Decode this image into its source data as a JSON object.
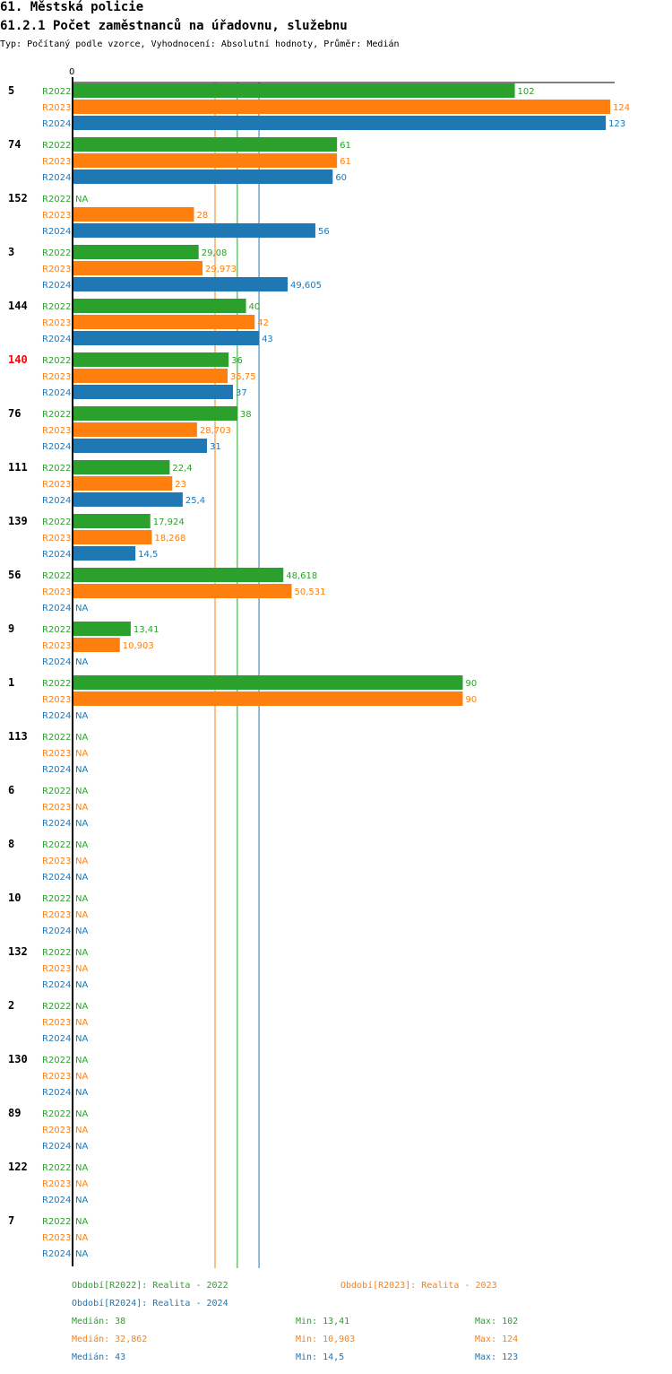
{
  "header": {
    "title": "61. Městská policie",
    "subtitle": "61.2.1 Počet zaměstnanců na úřadovnu, služebnu",
    "type_line": "Typ: Počítaný podle vzorce, Vyhodnocení: Absolutní hodnoty, Průměr: Medián"
  },
  "colors": {
    "R2022": "#2ca02c",
    "R2023": "#ff7f0e",
    "R2024": "#1f77b4",
    "highlight": "#ff0000"
  },
  "chart_data": {
    "type": "bar",
    "orientation": "horizontal",
    "axis_zero_label": "0",
    "xlim": [
      0,
      124
    ],
    "na_label": "NA",
    "series_names": [
      "R2022",
      "R2023",
      "R2024"
    ],
    "groups": [
      {
        "label": "5",
        "highlight": false,
        "values": [
          102,
          124,
          123
        ],
        "labels": [
          "102",
          "124",
          "123"
        ]
      },
      {
        "label": "74",
        "highlight": false,
        "values": [
          61,
          61,
          60
        ],
        "labels": [
          "61",
          "61",
          "60"
        ]
      },
      {
        "label": "152",
        "highlight": false,
        "values": [
          null,
          28,
          56
        ],
        "labels": [
          "NA",
          "28",
          "56"
        ]
      },
      {
        "label": "3",
        "highlight": false,
        "values": [
          29.08,
          29.973,
          49.605
        ],
        "labels": [
          "29,08",
          "29,973",
          "49,605"
        ]
      },
      {
        "label": "144",
        "highlight": false,
        "values": [
          40,
          42,
          43
        ],
        "labels": [
          "40",
          "42",
          "43"
        ]
      },
      {
        "label": "140",
        "highlight": true,
        "values": [
          36,
          35.75,
          37
        ],
        "labels": [
          "36",
          "35,75",
          "37"
        ]
      },
      {
        "label": "76",
        "highlight": false,
        "values": [
          38,
          28.703,
          31
        ],
        "labels": [
          "38",
          "28,703",
          "31"
        ]
      },
      {
        "label": "111",
        "highlight": false,
        "values": [
          22.4,
          23,
          25.4
        ],
        "labels": [
          "22,4",
          "23",
          "25,4"
        ]
      },
      {
        "label": "139",
        "highlight": false,
        "values": [
          17.924,
          18.268,
          14.5
        ],
        "labels": [
          "17,924",
          "18,268",
          "14,5"
        ]
      },
      {
        "label": "56",
        "highlight": false,
        "values": [
          48.618,
          50.531,
          null
        ],
        "labels": [
          "48,618",
          "50,531",
          "NA"
        ]
      },
      {
        "label": "9",
        "highlight": false,
        "values": [
          13.41,
          10.903,
          null
        ],
        "labels": [
          "13,41",
          "10,903",
          "NA"
        ]
      },
      {
        "label": "1",
        "highlight": false,
        "values": [
          90,
          90,
          null
        ],
        "labels": [
          "90",
          "90",
          "NA"
        ]
      },
      {
        "label": "113",
        "highlight": false,
        "values": [
          null,
          null,
          null
        ],
        "labels": [
          "NA",
          "NA",
          "NA"
        ]
      },
      {
        "label": "6",
        "highlight": false,
        "values": [
          null,
          null,
          null
        ],
        "labels": [
          "NA",
          "NA",
          "NA"
        ]
      },
      {
        "label": "8",
        "highlight": false,
        "values": [
          null,
          null,
          null
        ],
        "labels": [
          "NA",
          "NA",
          "NA"
        ]
      },
      {
        "label": "10",
        "highlight": false,
        "values": [
          null,
          null,
          null
        ],
        "labels": [
          "NA",
          "NA",
          "NA"
        ]
      },
      {
        "label": "132",
        "highlight": false,
        "values": [
          null,
          null,
          null
        ],
        "labels": [
          "NA",
          "NA",
          "NA"
        ]
      },
      {
        "label": "2",
        "highlight": false,
        "values": [
          null,
          null,
          null
        ],
        "labels": [
          "NA",
          "NA",
          "NA"
        ]
      },
      {
        "label": "130",
        "highlight": false,
        "values": [
          null,
          null,
          null
        ],
        "labels": [
          "NA",
          "NA",
          "NA"
        ]
      },
      {
        "label": "89",
        "highlight": false,
        "values": [
          null,
          null,
          null
        ],
        "labels": [
          "NA",
          "NA",
          "NA"
        ]
      },
      {
        "label": "122",
        "highlight": false,
        "values": [
          null,
          null,
          null
        ],
        "labels": [
          "NA",
          "NA",
          "NA"
        ]
      },
      {
        "label": "7",
        "highlight": false,
        "values": [
          null,
          null,
          null
        ],
        "labels": [
          "NA",
          "NA",
          "NA"
        ]
      }
    ],
    "median_lines": [
      38,
      32.862,
      43
    ]
  },
  "legend": {
    "r2022": "Období[R2022]: Realita - 2022",
    "r2023": "Období[R2023]: Realita - 2023",
    "r2024": "Období[R2024]: Realita - 2024"
  },
  "stats": [
    {
      "median": "Medián: 38",
      "min": "Min: 13,41",
      "max": "Max: 102"
    },
    {
      "median": "Medián: 32,862",
      "min": "Min: 10,903",
      "max": "Max: 124"
    },
    {
      "median": "Medián: 43",
      "min": "Min: 14,5",
      "max": "Max: 123"
    }
  ]
}
